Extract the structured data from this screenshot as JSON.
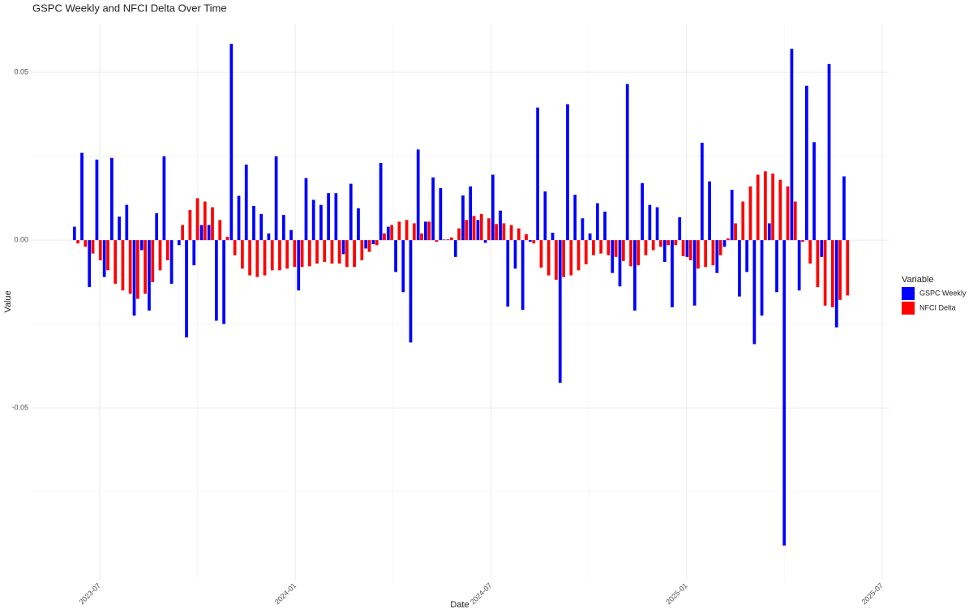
{
  "chart_data": {
    "type": "bar",
    "title": "GSPC Weekly and NFCI Delta Over Time",
    "x_label": "Date",
    "y_label": "Value",
    "legend_title": "Variable",
    "legend": "right",
    "grid": true,
    "x": [
      2023.44,
      2023.4591,
      2023.4782,
      2023.4973,
      2023.5164,
      2023.5355,
      2023.5546,
      2023.5737,
      2023.5928,
      2023.6119,
      2023.631,
      2023.6501,
      2023.6692,
      2023.6883,
      2023.7074,
      2023.7265,
      2023.7456,
      2023.7647,
      2023.7838,
      2023.8029,
      2023.822,
      2023.8411,
      2023.8602,
      2023.8793,
      2023.8984,
      2023.9175,
      2023.9366,
      2023.9557,
      2023.9748,
      2023.9939,
      2024.013,
      2024.0321,
      2024.0512,
      2024.0703,
      2024.0894,
      2024.1085,
      2024.1276,
      2024.1467,
      2024.1658,
      2024.1849,
      2024.204,
      2024.2231,
      2024.2422,
      2024.2613,
      2024.2804,
      2024.2995,
      2024.3186,
      2024.3377,
      2024.3568,
      2024.3759,
      2024.395,
      2024.4141,
      2024.4332,
      2024.4523,
      2024.4714,
      2024.4905,
      2024.5096,
      2024.5287,
      2024.5478,
      2024.5669,
      2024.586,
      2024.6051,
      2024.6242,
      2024.6433,
      2024.6624,
      2024.6815,
      2024.7006,
      2024.7197,
      2024.7388,
      2024.7579,
      2024.777,
      2024.7961,
      2024.8152,
      2024.8343,
      2024.8534,
      2024.8725,
      2024.8916,
      2024.9107,
      2024.9298,
      2024.9489,
      2024.968,
      2024.9871,
      2025.0062,
      2025.0253,
      2025.0444,
      2025.0635,
      2025.0826,
      2025.1017,
      2025.1208,
      2025.1399,
      2025.159,
      2025.1781,
      2025.1972,
      2025.2163,
      2025.2354,
      2025.2545,
      2025.2736,
      2025.2927,
      2025.3118,
      2025.3309,
      2025.35,
      2025.3691,
      2025.3882,
      2025.4073
    ],
    "series": [
      {
        "name": "GSPC Weekly",
        "color": "#0000ff",
        "values": [
          0.004,
          0.026,
          -0.014,
          0.024,
          -0.011,
          0.0245,
          0.007,
          0.0105,
          -0.0225,
          -0.003,
          -0.021,
          0.008,
          0.025,
          -0.013,
          -0.0015,
          -0.029,
          -0.0075,
          0.0045,
          0.0045,
          -0.024,
          -0.025,
          0.0585,
          0.0132,
          0.0225,
          0.0102,
          0.0078,
          0.002,
          0.025,
          0.0075,
          0.003,
          -0.015,
          0.0185,
          0.012,
          0.0105,
          0.014,
          0.014,
          -0.0042,
          0.0168,
          0.0095,
          -0.0025,
          -0.0012,
          0.023,
          0.004,
          -0.0095,
          -0.0155,
          -0.0305,
          0.027,
          0.0055,
          0.0187,
          0.0155,
          0.0002,
          -0.005,
          0.0133,
          0.016,
          0.006,
          -0.0008,
          0.0195,
          0.0088,
          -0.0198,
          -0.0085,
          -0.0208,
          -0.0005,
          0.0395,
          0.0145,
          0.0022,
          -0.0425,
          0.0405,
          0.0135,
          0.0065,
          0.002,
          0.011,
          0.0085,
          -0.0098,
          -0.0138,
          0.0465,
          -0.021,
          0.017,
          0.0105,
          0.0098,
          -0.0065,
          -0.02,
          0.0068,
          -0.005,
          -0.0195,
          0.029,
          0.0175,
          -0.0098,
          -0.002,
          0.015,
          -0.0168,
          -0.0095,
          -0.031,
          -0.0225,
          0.005,
          -0.0155,
          -0.091,
          0.057,
          -0.015,
          0.046,
          0.0292,
          -0.005,
          0.0525,
          -0.026,
          0.019
        ]
      },
      {
        "name": "NFCI Delta",
        "color": "#ff0000",
        "values": [
          -0.001,
          -0.002,
          -0.004,
          -0.006,
          -0.009,
          -0.013,
          -0.015,
          -0.016,
          -0.0175,
          -0.016,
          -0.0125,
          -0.009,
          -0.006,
          0,
          0.0045,
          0.009,
          0.0125,
          0.0115,
          0.0098,
          0.006,
          0.001,
          -0.0045,
          -0.0085,
          -0.0105,
          -0.011,
          -0.0105,
          -0.009,
          -0.009,
          -0.0085,
          -0.008,
          -0.008,
          -0.0078,
          -0.007,
          -0.0065,
          -0.007,
          -0.007,
          -0.008,
          -0.008,
          -0.006,
          -0.0035,
          -0.0015,
          0.002,
          0.0045,
          0.0055,
          0.006,
          0.005,
          0.002,
          0.0055,
          -0.0005,
          0.0002,
          0.0008,
          0.0035,
          0.006,
          0.0072,
          0.0078,
          0.0065,
          0.0048,
          0.005,
          0.0045,
          0.0035,
          0.0018,
          -0.001,
          -0.0082,
          -0.0105,
          -0.0118,
          -0.011,
          -0.0105,
          -0.009,
          -0.0072,
          -0.0045,
          -0.004,
          -0.0045,
          -0.005,
          -0.0062,
          -0.0078,
          -0.0075,
          -0.0045,
          -0.003,
          -0.002,
          -0.0015,
          -0.0015,
          -0.0048,
          -0.006,
          -0.0085,
          -0.008,
          -0.0075,
          -0.0045,
          0.0005,
          0.005,
          0.0115,
          0.016,
          0.0195,
          0.0205,
          0.0198,
          0.018,
          0.016,
          0.0115,
          -0.0005,
          -0.007,
          -0.014,
          -0.0195,
          -0.02,
          -0.0178,
          -0.0165
        ]
      }
    ],
    "xlim": [
      2023.324,
      2025.519
    ],
    "xticks": [
      {
        "value": 2023.5,
        "label": "2023-07"
      },
      {
        "value": 2024.0,
        "label": "2024-01"
      },
      {
        "value": 2024.5,
        "label": "2024-07"
      },
      {
        "value": 2025.0,
        "label": "2025-01"
      },
      {
        "value": 2025.5,
        "label": "2025-07"
      }
    ],
    "ylim": [
      -0.1012,
      0.0643
    ],
    "yticks": [
      -0.05,
      {
        "value": 0,
        "label": "0.00"
      },
      0.05
    ]
  }
}
